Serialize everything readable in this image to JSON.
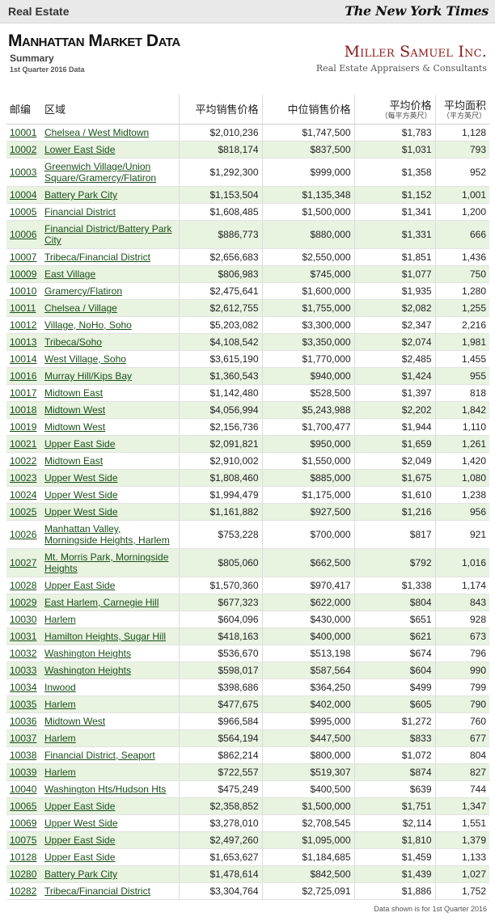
{
  "topbar": {
    "section": "Real Estate",
    "publisher": "The New York Times"
  },
  "header": {
    "title": "Manhattan Market Data",
    "subtitle": "Summary",
    "period": "1st Quarter 2016 Data",
    "logo_name": "Miller Samuel Inc.",
    "logo_tagline": "Real Estate Appraisers & Consultants"
  },
  "table": {
    "headers": {
      "zip": "邮编",
      "area": "区域",
      "avg_price": "平均销售价格",
      "median_price": "中位销售价格",
      "avg_ppsf": "平均价格",
      "avg_ppsf_sub": "（每平方英尺）",
      "avg_size": "平均面积",
      "avg_size_sub": "（平方英尺）"
    },
    "rows": [
      {
        "zip": "10001",
        "area": "Chelsea / West Midtown",
        "avg": "$2,010,236",
        "median": "$1,747,500",
        "ppsf": "$1,783",
        "size": "1,128"
      },
      {
        "zip": "10002",
        "area": "Lower East Side",
        "avg": "$818,174",
        "median": "$837,500",
        "ppsf": "$1,031",
        "size": "793"
      },
      {
        "zip": "10003",
        "area": "Greenwich Village/Union Square/Gramercy/Flatiron",
        "avg": "$1,292,300",
        "median": "$999,000",
        "ppsf": "$1,358",
        "size": "952"
      },
      {
        "zip": "10004",
        "area": "Battery Park City",
        "avg": "$1,153,504",
        "median": "$1,135,348",
        "ppsf": "$1,152",
        "size": "1,001"
      },
      {
        "zip": "10005",
        "area": "Financial District",
        "avg": "$1,608,485",
        "median": "$1,500,000",
        "ppsf": "$1,341",
        "size": "1,200"
      },
      {
        "zip": "10006",
        "area": "Financial District/Battery Park City",
        "avg": "$886,773",
        "median": "$880,000",
        "ppsf": "$1,331",
        "size": "666"
      },
      {
        "zip": "10007",
        "area": "Tribeca/Financial District",
        "avg": "$2,656,683",
        "median": "$2,550,000",
        "ppsf": "$1,851",
        "size": "1,436"
      },
      {
        "zip": "10009",
        "area": "East Village",
        "avg": "$806,983",
        "median": "$745,000",
        "ppsf": "$1,077",
        "size": "750"
      },
      {
        "zip": "10010",
        "area": "Gramercy/Flatiron",
        "avg": "$2,475,641",
        "median": "$1,600,000",
        "ppsf": "$1,935",
        "size": "1,280"
      },
      {
        "zip": "10011",
        "area": "Chelsea / Village",
        "avg": "$2,612,755",
        "median": "$1,755,000",
        "ppsf": "$2,082",
        "size": "1,255"
      },
      {
        "zip": "10012",
        "area": "Village, NoHo, Soho",
        "avg": "$5,203,082",
        "median": "$3,300,000",
        "ppsf": "$2,347",
        "size": "2,216"
      },
      {
        "zip": "10013",
        "area": "Tribeca/Soho",
        "avg": "$4,108,542",
        "median": "$3,350,000",
        "ppsf": "$2,074",
        "size": "1,981"
      },
      {
        "zip": "10014",
        "area": "West Village, Soho",
        "avg": "$3,615,190",
        "median": "$1,770,000",
        "ppsf": "$2,485",
        "size": "1,455"
      },
      {
        "zip": "10016",
        "area": "Murray Hill/Kips Bay",
        "avg": "$1,360,543",
        "median": "$940,000",
        "ppsf": "$1,424",
        "size": "955"
      },
      {
        "zip": "10017",
        "area": "Midtown East",
        "avg": "$1,142,480",
        "median": "$528,500",
        "ppsf": "$1,397",
        "size": "818"
      },
      {
        "zip": "10018",
        "area": "Midtown West",
        "avg": "$4,056,994",
        "median": "$5,243,988",
        "ppsf": "$2,202",
        "size": "1,842"
      },
      {
        "zip": "10019",
        "area": "Midtown West",
        "avg": "$2,156,736",
        "median": "$1,700,477",
        "ppsf": "$1,944",
        "size": "1,110"
      },
      {
        "zip": "10021",
        "area": "Upper East Side",
        "avg": "$2,091,821",
        "median": "$950,000",
        "ppsf": "$1,659",
        "size": "1,261"
      },
      {
        "zip": "10022",
        "area": "Midtown East",
        "avg": "$2,910,002",
        "median": "$1,550,000",
        "ppsf": "$2,049",
        "size": "1,420"
      },
      {
        "zip": "10023",
        "area": "Upper West Side",
        "avg": "$1,808,460",
        "median": "$885,000",
        "ppsf": "$1,675",
        "size": "1,080"
      },
      {
        "zip": "10024",
        "area": "Upper West Side",
        "avg": "$1,994,479",
        "median": "$1,175,000",
        "ppsf": "$1,610",
        "size": "1,238"
      },
      {
        "zip": "10025",
        "area": "Upper West Side",
        "avg": "$1,161,882",
        "median": "$927,500",
        "ppsf": "$1,216",
        "size": "956"
      },
      {
        "zip": "10026",
        "area": "Manhattan Valley, Morningside Heights, Harlem",
        "avg": "$753,228",
        "median": "$700,000",
        "ppsf": "$817",
        "size": "921"
      },
      {
        "zip": "10027",
        "area": "Mt. Morris Park, Morningside Heights",
        "avg": "$805,060",
        "median": "$662,500",
        "ppsf": "$792",
        "size": "1,016"
      },
      {
        "zip": "10028",
        "area": "Upper East Side",
        "avg": "$1,570,360",
        "median": "$970,417",
        "ppsf": "$1,338",
        "size": "1,174"
      },
      {
        "zip": "10029",
        "area": "East Harlem, Carnegie Hill",
        "avg": "$677,323",
        "median": "$622,000",
        "ppsf": "$804",
        "size": "843"
      },
      {
        "zip": "10030",
        "area": "Harlem",
        "avg": "$604,096",
        "median": "$430,000",
        "ppsf": "$651",
        "size": "928"
      },
      {
        "zip": "10031",
        "area": "Hamilton Heights, Sugar Hill",
        "avg": "$418,163",
        "median": "$400,000",
        "ppsf": "$621",
        "size": "673"
      },
      {
        "zip": "10032",
        "area": "Washington Heights",
        "avg": "$536,670",
        "median": "$513,198",
        "ppsf": "$674",
        "size": "796"
      },
      {
        "zip": "10033",
        "area": "Washington Heights",
        "avg": "$598,017",
        "median": "$587,564",
        "ppsf": "$604",
        "size": "990"
      },
      {
        "zip": "10034",
        "area": "Inwood",
        "avg": "$398,686",
        "median": "$364,250",
        "ppsf": "$499",
        "size": "799"
      },
      {
        "zip": "10035",
        "area": "Harlem",
        "avg": "$477,675",
        "median": "$402,000",
        "ppsf": "$605",
        "size": "790"
      },
      {
        "zip": "10036",
        "area": "Midtown West",
        "avg": "$966,584",
        "median": "$995,000",
        "ppsf": "$1,272",
        "size": "760"
      },
      {
        "zip": "10037",
        "area": "Harlem",
        "avg": "$564,194",
        "median": "$447,500",
        "ppsf": "$833",
        "size": "677"
      },
      {
        "zip": "10038",
        "area": "Financial District, Seaport",
        "avg": "$862,214",
        "median": "$800,000",
        "ppsf": "$1,072",
        "size": "804"
      },
      {
        "zip": "10039",
        "area": "Harlem",
        "avg": "$722,557",
        "median": "$519,307",
        "ppsf": "$874",
        "size": "827"
      },
      {
        "zip": "10040",
        "area": "Washington Hts/Hudson Hts",
        "avg": "$475,249",
        "median": "$400,500",
        "ppsf": "$639",
        "size": "744"
      },
      {
        "zip": "10065",
        "area": "Upper East Side",
        "avg": "$2,358,852",
        "median": "$1,500,000",
        "ppsf": "$1,751",
        "size": "1,347"
      },
      {
        "zip": "10069",
        "area": "Upper West Side",
        "avg": "$3,278,010",
        "median": "$2,708,545",
        "ppsf": "$2,114",
        "size": "1,551"
      },
      {
        "zip": "10075",
        "area": "Upper East Side",
        "avg": "$2,497,260",
        "median": "$1,095,000",
        "ppsf": "$1,810",
        "size": "1,379"
      },
      {
        "zip": "10128",
        "area": "Upper East Side",
        "avg": "$1,653,627",
        "median": "$1,184,685",
        "ppsf": "$1,459",
        "size": "1,133"
      },
      {
        "zip": "10280",
        "area": "Battery Park City",
        "avg": "$1,478,614",
        "median": "$842,500",
        "ppsf": "$1,439",
        "size": "1,027"
      },
      {
        "zip": "10282",
        "area": "Tribeca/Financial District",
        "avg": "$3,304,764",
        "median": "$2,725,091",
        "ppsf": "$1,886",
        "size": "1,752"
      }
    ]
  },
  "footnote": "Data shown is for 1st Quarter 2016"
}
